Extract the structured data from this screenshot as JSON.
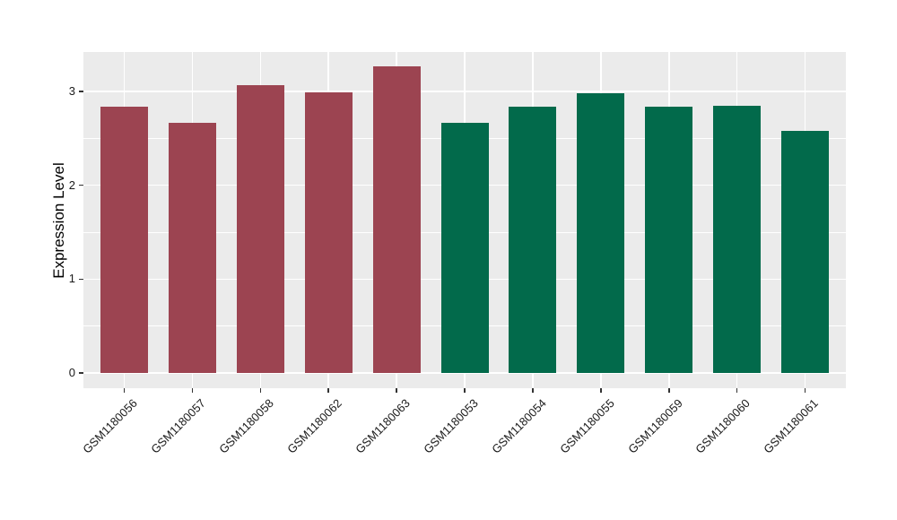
{
  "chart_data": {
    "type": "bar",
    "title": "",
    "xlabel": "",
    "ylabel": "Expression Level",
    "categories": [
      "GSM1180056",
      "GSM1180057",
      "GSM1180058",
      "GSM1180062",
      "GSM1180063",
      "GSM1180053",
      "GSM1180054",
      "GSM1180055",
      "GSM1180059",
      "GSM1180060",
      "GSM1180061"
    ],
    "values": [
      2.84,
      2.66,
      3.07,
      2.99,
      3.27,
      2.66,
      2.84,
      2.98,
      2.84,
      2.85,
      2.58
    ],
    "bar_colors": [
      "#9C4451",
      "#9C4451",
      "#9C4451",
      "#9C4451",
      "#9C4451",
      "#026A4B",
      "#026A4B",
      "#026A4B",
      "#026A4B",
      "#026A4B",
      "#026A4B"
    ],
    "groups": [
      {
        "name": "red-group",
        "color": "#9C4451",
        "categories": [
          "GSM1180056",
          "GSM1180057",
          "GSM1180058",
          "GSM1180062",
          "GSM1180063"
        ]
      },
      {
        "name": "green-group",
        "color": "#026A4B",
        "categories": [
          "GSM1180053",
          "GSM1180054",
          "GSM1180055",
          "GSM1180059",
          "GSM1180060",
          "GSM1180061"
        ]
      }
    ],
    "y_ticks": [
      "0",
      "1",
      "2",
      "3"
    ],
    "y_minor_ticks": [
      0.5,
      1.5,
      2.5
    ],
    "ylim": [
      -0.16,
      3.43
    ],
    "legend": "none",
    "grid": "on",
    "panel_background": "#EBEBEB",
    "gridline_color": "#FFFFFF",
    "tick_mark_color": "#333333"
  }
}
